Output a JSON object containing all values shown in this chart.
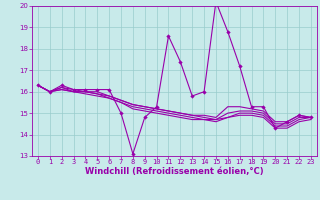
{
  "xlabel": "Windchill (Refroidissement éolien,°C)",
  "xlim": [
    -0.5,
    23.5
  ],
  "ylim": [
    13,
    20
  ],
  "yticks": [
    13,
    14,
    15,
    16,
    17,
    18,
    19,
    20
  ],
  "xticks": [
    0,
    1,
    2,
    3,
    4,
    5,
    6,
    7,
    8,
    9,
    10,
    11,
    12,
    13,
    14,
    15,
    16,
    17,
    18,
    19,
    20,
    21,
    22,
    23
  ],
  "bg_color": "#c8eaea",
  "line_color": "#9900aa",
  "grid_color": "#99cccc",
  "tick_fontsize": 5.0,
  "xlabel_fontsize": 6.0,
  "lines": [
    [
      16.3,
      16.0,
      16.3,
      16.1,
      16.1,
      16.1,
      16.1,
      15.0,
      13.1,
      14.8,
      15.3,
      18.6,
      17.4,
      15.8,
      16.0,
      20.2,
      18.8,
      17.2,
      15.3,
      15.3,
      14.3,
      14.6,
      14.9,
      14.8
    ],
    [
      16.3,
      16.0,
      16.1,
      16.0,
      16.0,
      16.0,
      15.8,
      15.6,
      15.4,
      15.3,
      15.2,
      15.1,
      15.0,
      14.9,
      14.9,
      14.8,
      15.3,
      15.3,
      15.2,
      15.1,
      14.6,
      14.6,
      14.9,
      14.8
    ],
    [
      16.3,
      16.0,
      16.2,
      16.0,
      15.9,
      15.8,
      15.7,
      15.5,
      15.3,
      15.2,
      15.1,
      15.0,
      14.9,
      14.8,
      14.7,
      14.7,
      14.8,
      15.0,
      15.0,
      14.9,
      14.4,
      14.4,
      14.7,
      14.8
    ],
    [
      16.3,
      16.0,
      16.2,
      16.1,
      16.0,
      15.9,
      15.8,
      15.6,
      15.4,
      15.3,
      15.2,
      15.1,
      15.0,
      14.9,
      14.8,
      14.7,
      15.0,
      15.1,
      15.1,
      15.0,
      14.5,
      14.5,
      14.8,
      14.8
    ],
    [
      16.3,
      16.0,
      16.1,
      16.0,
      16.0,
      15.9,
      15.7,
      15.5,
      15.2,
      15.1,
      15.0,
      14.9,
      14.8,
      14.7,
      14.7,
      14.6,
      14.8,
      14.9,
      14.9,
      14.8,
      14.3,
      14.3,
      14.6,
      14.7
    ]
  ]
}
